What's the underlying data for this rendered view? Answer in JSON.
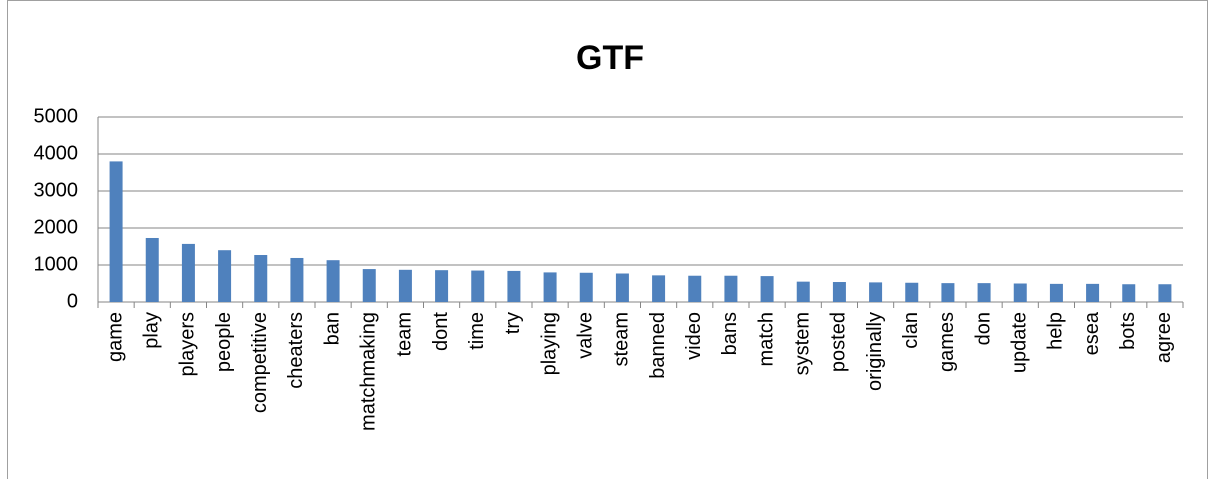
{
  "chart_data": {
    "type": "bar",
    "title": "GTF",
    "categories": [
      "game",
      "play",
      "players",
      "people",
      "competitive",
      "cheaters",
      "ban",
      "matchmaking",
      "team",
      "dont",
      "time",
      "try",
      "playing",
      "valve",
      "steam",
      "banned",
      "video",
      "bans",
      "match",
      "system",
      "posted",
      "originally",
      "clan",
      "games",
      "don",
      "update",
      "help",
      "esea",
      "bots",
      "agree"
    ],
    "values": [
      3800,
      1730,
      1570,
      1400,
      1270,
      1190,
      1130,
      890,
      870,
      860,
      850,
      840,
      800,
      790,
      770,
      720,
      710,
      710,
      700,
      550,
      540,
      530,
      520,
      510,
      510,
      500,
      490,
      490,
      480,
      480
    ],
    "color": "#4f81bd",
    "ylim": [
      0,
      5000
    ],
    "yticks": [
      0,
      1000,
      2000,
      3000,
      4000,
      5000
    ],
    "grid": true
  }
}
